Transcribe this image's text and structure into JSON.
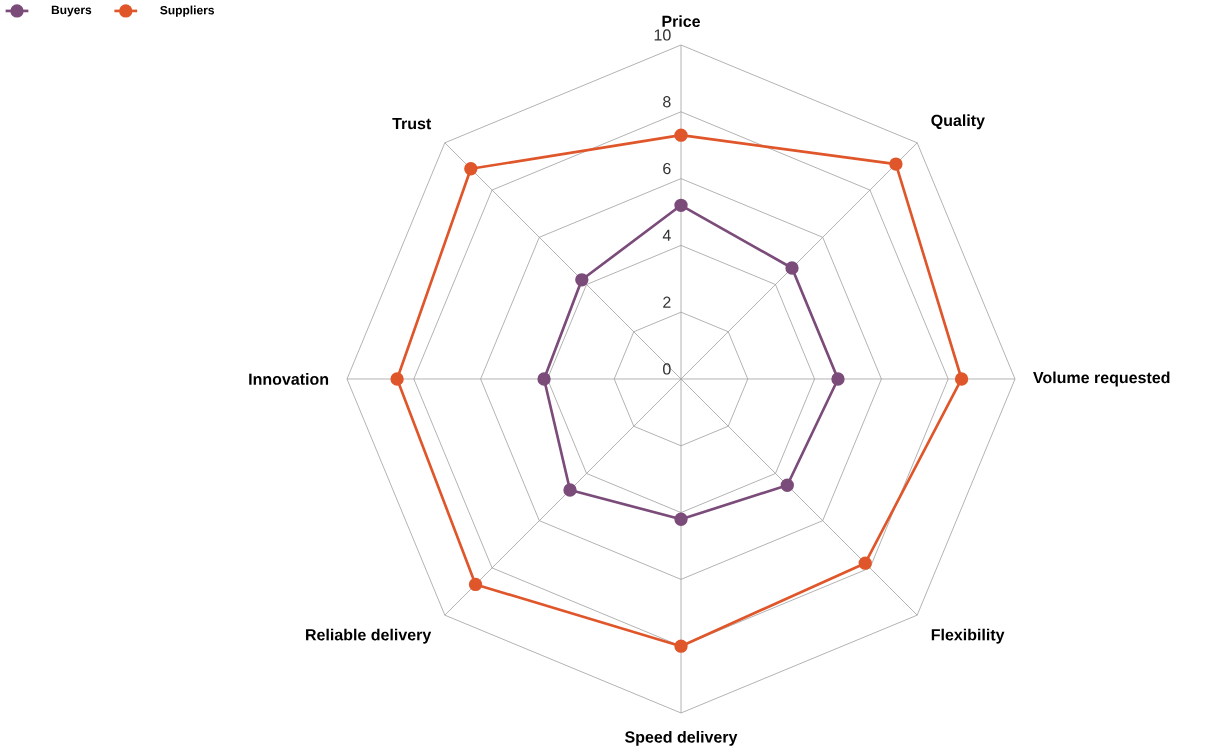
{
  "chart_data": {
    "type": "radar",
    "categories": [
      "Price",
      "Quality",
      "Volume requested",
      "Flexibility",
      "Speed delivery",
      "Reliable delivery",
      "Innovation",
      "Trust"
    ],
    "series": [
      {
        "name": "Buyers",
        "color": "#7b4b7a",
        "values": [
          5.2,
          4.7,
          4.7,
          4.5,
          4.2,
          4.7,
          4.1,
          4.2
        ]
      },
      {
        "name": "Suppliers",
        "color": "#e0562b",
        "values": [
          7.3,
          9.1,
          8.4,
          7.8,
          8.0,
          8.7,
          8.5,
          8.9
        ]
      }
    ],
    "ylim": [
      0,
      10
    ],
    "yticks": [
      0,
      2,
      4,
      6,
      8,
      10
    ],
    "grid": true,
    "legend": "top left",
    "marker": "circle",
    "line_style": "solid"
  }
}
